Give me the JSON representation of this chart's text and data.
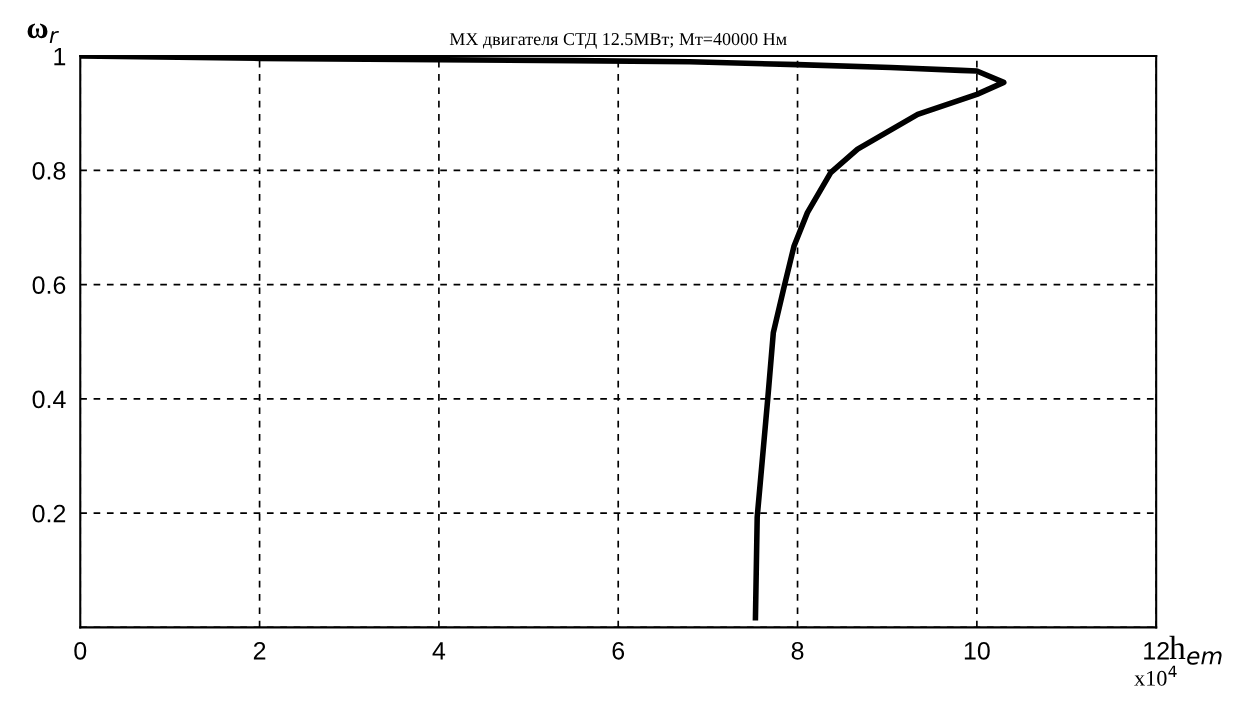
{
  "chart_data": {
    "type": "line",
    "title": "МХ двигателя СТД 12.5МВт; Мт=40000 Нм",
    "xlabel": "h$_{em}$",
    "ylabel": "ω$_{r}$",
    "annotations": [
      "x10$^{4}$"
    ],
    "series": [
      {
        "color": "#000000",
        "x": [
          7.53,
          7.55,
          7.67,
          7.73,
          7.85,
          7.96,
          8.11,
          8.37,
          8.67,
          9.34,
          10.0,
          10.3,
          10.0,
          9.82,
          9.04,
          8.0,
          6.8,
          5.5,
          2.0,
          0.0
        ],
        "values": [
          0.012,
          0.193,
          0.404,
          0.516,
          0.596,
          0.667,
          0.726,
          0.796,
          0.837,
          0.898,
          0.933,
          0.954,
          0.974,
          0.975,
          0.98,
          0.985,
          0.99,
          0.992,
          0.996,
          1.0
        ]
      }
    ],
    "xlim": [
      0,
      12
    ],
    "ylim": [
      0,
      1
    ],
    "xticks": [
      0,
      2,
      4,
      6,
      8,
      10,
      12
    ],
    "yticks": [
      {
        "value": 0,
        "label": null
      },
      0.2,
      0.4,
      0.6,
      0.8,
      1
    ],
    "grid": true,
    "line_style": "solid",
    "marker": "none"
  }
}
